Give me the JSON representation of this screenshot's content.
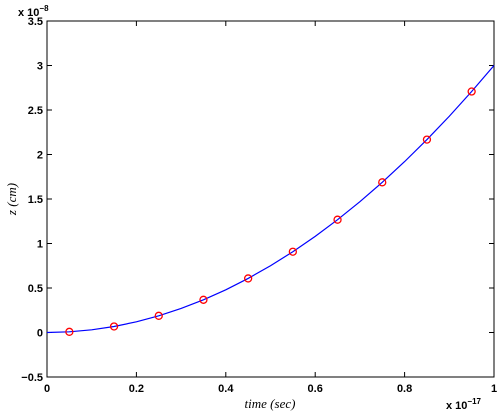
{
  "chart_data": {
    "type": "line",
    "xlabel": "time (sec)",
    "ylabel": "z (cm)",
    "x_multiplier": {
      "base": "x 10",
      "exponent": "−17"
    },
    "y_multiplier": {
      "base": "x 10",
      "exponent": "−8"
    },
    "xlim": [
      0,
      1
    ],
    "ylim": [
      -0.5,
      3.5
    ],
    "x_ticks": [
      0,
      0.2,
      0.4,
      0.6,
      0.8,
      1
    ],
    "x_tick_labels": [
      "0",
      "0.2",
      "0.4",
      "0.6",
      "0.8",
      "1"
    ],
    "y_ticks": [
      -0.5,
      0,
      0.5,
      1,
      1.5,
      2,
      2.5,
      3,
      3.5
    ],
    "y_tick_labels": [
      "−0.5",
      "0",
      "0.5",
      "1",
      "1.5",
      "2",
      "2.5",
      "3",
      "3.5"
    ],
    "grid": false,
    "series": [
      {
        "style": "line",
        "color": "#0000ff",
        "function": "3*x^2",
        "x": [
          0,
          0.05,
          0.1,
          0.15,
          0.2,
          0.25,
          0.3,
          0.35,
          0.4,
          0.45,
          0.5,
          0.55,
          0.6,
          0.65,
          0.7,
          0.75,
          0.8,
          0.85,
          0.9,
          0.95,
          1
        ],
        "y": [
          0,
          0.0075,
          0.03,
          0.0675,
          0.12,
          0.1875,
          0.27,
          0.3675,
          0.48,
          0.6075,
          0.75,
          0.9075,
          1.08,
          1.2675,
          1.47,
          1.6875,
          1.92,
          2.1675,
          2.43,
          2.7075,
          3.0
        ]
      },
      {
        "style": "markers",
        "marker": "circle",
        "color": "#ff0000",
        "x": [
          0.05,
          0.15,
          0.25,
          0.35,
          0.45,
          0.55,
          0.65,
          0.75,
          0.85,
          0.95
        ],
        "y": [
          0.0075,
          0.0675,
          0.1875,
          0.3675,
          0.6075,
          0.9075,
          1.2675,
          1.6875,
          2.1675,
          2.7075
        ]
      }
    ]
  }
}
